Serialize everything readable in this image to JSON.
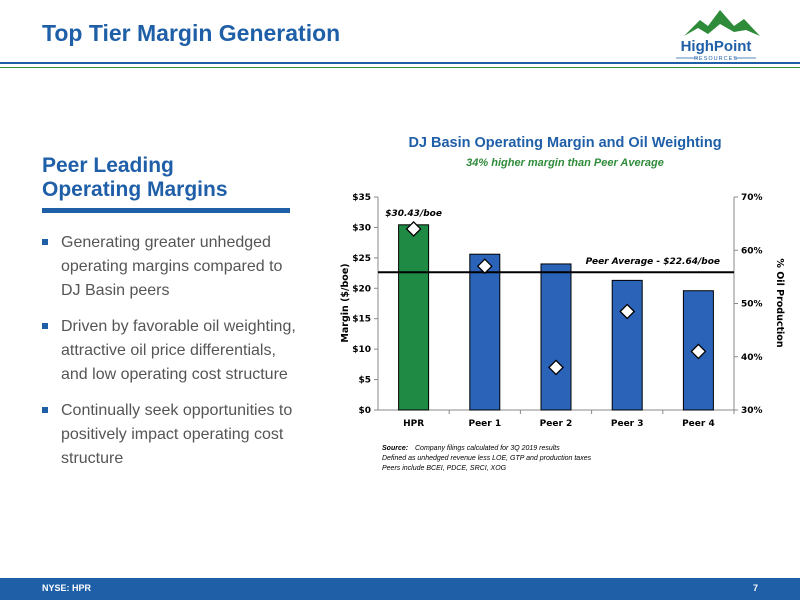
{
  "slide": {
    "title": "Top Tier Margin Generation",
    "heading_line1": "Peer Leading",
    "heading_line2": "Operating Margins",
    "bullets": [
      "Generating greater unhedged operating margins compared to DJ Basin peers",
      "Driven by favorable oil weighting, attractive oil price differentials, and low operating cost structure",
      "Continually seek opportunities to positively impact operating cost structure"
    ]
  },
  "logo": {
    "name": "HighPoint",
    "tagline": "RESOURCES"
  },
  "footer": {
    "ticker": "NYSE: HPR",
    "page_number": "7"
  },
  "colors": {
    "accent_blue": "#1f5fa8",
    "hpr_green": "#1e8a44",
    "peer_blue": "#2a63b8"
  },
  "chart_data": {
    "type": "bar",
    "title": "DJ Basin Operating Margin and Oil Weighting",
    "subtitle": "34% higher margin than Peer Average",
    "categories": [
      "HPR",
      "Peer 1",
      "Peer 2",
      "Peer 3",
      "Peer 4"
    ],
    "series": [
      {
        "name": "",
        "values": [
          30.43,
          25.6,
          24.0,
          21.3,
          19.6
        ],
        "axis": "left"
      },
      {
        "name": "",
        "type": "scatter",
        "marker": "diamond",
        "values": [
          0.64,
          0.57,
          0.38,
          0.485,
          0.41
        ],
        "axis": "right"
      }
    ],
    "ylabel": "Margin ($/boe)",
    "ylim": [
      0,
      35
    ],
    "yticks": [
      "$0",
      "$5",
      "$10",
      "$15",
      "$20",
      "$25",
      "$30",
      "$35"
    ],
    "y2label": "% Oil Production",
    "y2lim": [
      0.3,
      0.7
    ],
    "y2ticks": [
      "30%",
      "40%",
      "50%",
      "60%",
      "70%"
    ],
    "reference_line": {
      "value": 22.64,
      "label": "Peer Average - $22.64/boe"
    },
    "bar_label": "$30.43/boe",
    "source_label": "Source:",
    "source_text": "Company filings calculated for 3Q 2019 results",
    "notes": [
      "Defined as unhedged revenue less LOE, GTP and production taxes",
      "Peers include BCEI, PDCE, SRCI, XOG"
    ]
  }
}
